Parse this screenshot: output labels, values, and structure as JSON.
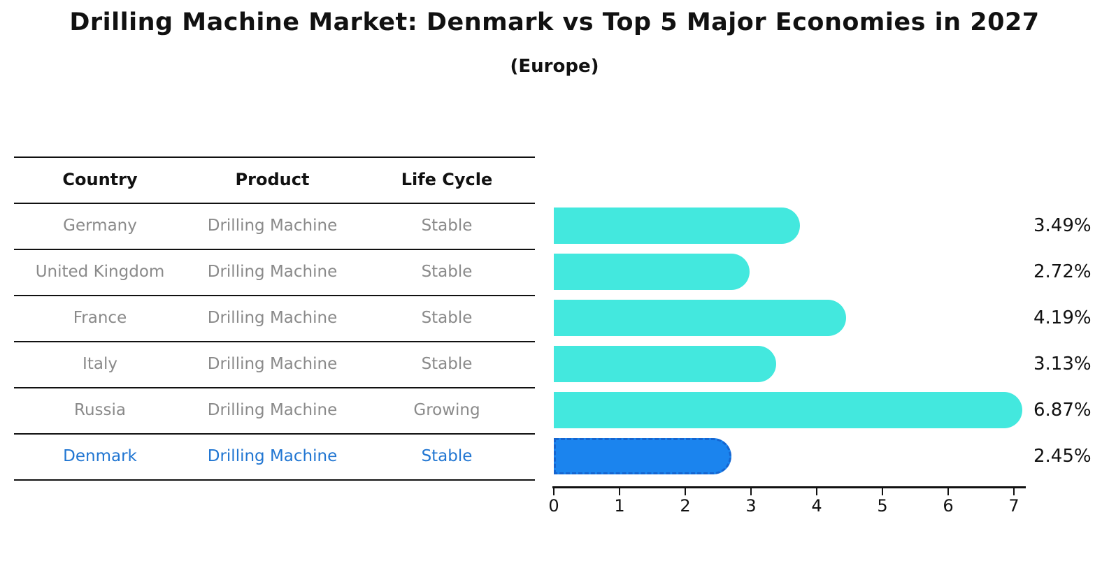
{
  "title": "Drilling Machine Market: Denmark vs Top 5 Major Economies in 2027",
  "subtitle": "(Europe)",
  "table": {
    "headers": [
      "Country",
      "Product",
      "Life Cycle"
    ],
    "rows": [
      {
        "country": "Germany",
        "product": "Drilling Machine",
        "life_cycle": "Stable",
        "highlight": false
      },
      {
        "country": "United Kingdom",
        "product": "Drilling Machine",
        "life_cycle": "Stable",
        "highlight": false
      },
      {
        "country": "France",
        "product": "Drilling Machine",
        "life_cycle": "Stable",
        "highlight": false
      },
      {
        "country": "Italy",
        "product": "Drilling Machine",
        "life_cycle": "Stable",
        "highlight": false
      },
      {
        "country": "Russia",
        "product": "Drilling Machine",
        "life_cycle": "Growing",
        "highlight": false
      },
      {
        "country": "Denmark",
        "product": "Drilling Machine",
        "life_cycle": "Stable",
        "highlight": true
      }
    ]
  },
  "chart_data": {
    "type": "bar",
    "orientation": "horizontal",
    "title": "Drilling Machine Market: Denmark vs Top 5 Major Economies in 2027",
    "subtitle": "(Europe)",
    "categories": [
      "Germany",
      "United Kingdom",
      "France",
      "Italy",
      "Russia",
      "Denmark"
    ],
    "values": [
      3.49,
      2.72,
      4.19,
      3.13,
      6.87,
      2.45
    ],
    "value_labels": [
      "3.49%",
      "2.72%",
      "4.19%",
      "3.13%",
      "6.87%",
      "2.45%"
    ],
    "highlight_index": 5,
    "xlim": [
      0,
      7
    ],
    "x_ticks": [
      "0",
      "1",
      "2",
      "3",
      "4",
      "5",
      "6",
      "7"
    ],
    "grid": false,
    "legend": false
  },
  "colors": {
    "bar_cyan": "#43e8de",
    "bar_blue": "#1b84ee",
    "bar_blue_border": "#1565d0",
    "highlight_text": "#2176d2",
    "muted_text": "#8a8a8a",
    "ink": "#111111"
  }
}
